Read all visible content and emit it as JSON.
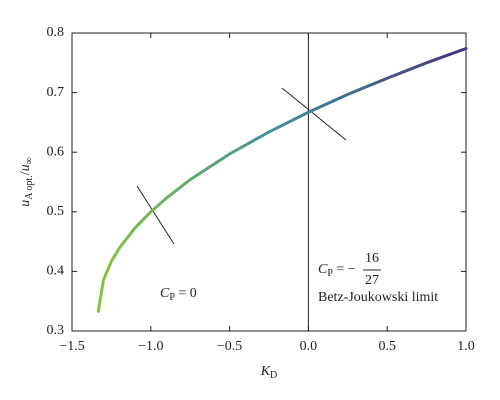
{
  "chart_data": {
    "type": "line",
    "x_label": {
      "symbol": "K",
      "sub": "D"
    },
    "y_label": {
      "symbol": "u",
      "sub": "A opt.",
      "slash": "/",
      "symbol2": "u",
      "sub2": "∞"
    },
    "x": [
      -1.333,
      -1.3,
      -1.25,
      -1.2,
      -1.1,
      -1.0,
      -0.9,
      -0.75,
      -0.5,
      -0.25,
      0,
      0.25,
      0.5,
      0.75,
      1.0
    ],
    "series": [
      {
        "colors": [
          "#86c440",
          "#3f8f9c",
          "#47307a"
        ],
        "values": [
          0.333,
          0.386,
          0.417,
          0.439,
          0.473,
          0.5,
          0.523,
          0.554,
          0.597,
          0.634,
          0.667,
          0.697,
          0.724,
          0.75,
          0.774
        ]
      }
    ],
    "xlim": [
      -1.5,
      1.0
    ],
    "ylim": [
      0.3,
      0.8
    ],
    "xticks": [
      {
        "value": -1.5,
        "label": "−1.5"
      },
      {
        "value": -1.0,
        "label": "−1.0"
      },
      {
        "value": -0.5,
        "label": "−0.5"
      },
      {
        "value": 0,
        "label": "0.0"
      },
      {
        "value": 0.5,
        "label": "0.5"
      },
      {
        "value": 1.0,
        "label": "1.0"
      }
    ],
    "yticks": [
      0.3,
      0.4,
      0.5,
      0.6,
      0.7,
      0.8
    ],
    "vline": 0,
    "annotations": [
      {
        "symbol": "C",
        "sub": "P",
        "rest": " = 0"
      },
      {
        "symbol": "C",
        "sub": "P",
        "rest": " = −",
        "numerator": "16",
        "denominator": "27",
        "note": "Betz-Joukowski limit"
      }
    ]
  }
}
